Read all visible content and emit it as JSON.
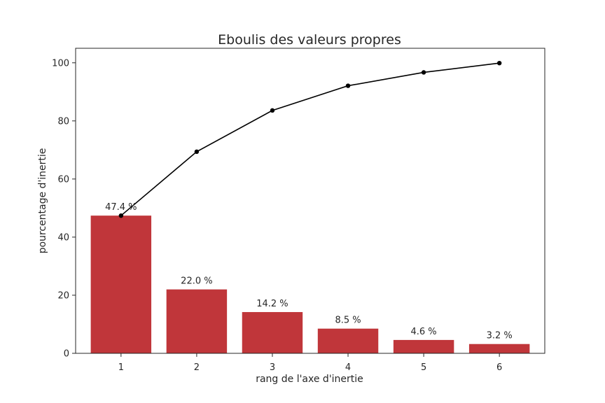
{
  "chart_data": {
    "type": "bar",
    "title": "Eboulis des valeurs propres",
    "xlabel": "rang de l'axe d'inertie",
    "ylabel": "pourcentage d'inertie",
    "categories": [
      "1",
      "2",
      "3",
      "4",
      "5",
      "6"
    ],
    "values": [
      47.4,
      22.0,
      14.2,
      8.5,
      4.6,
      3.2
    ],
    "data_labels": [
      "47.4 %",
      "22.0 %",
      "14.2 %",
      "8.5 %",
      "4.6 %",
      "3.2 %"
    ],
    "cumulative": [
      47.4,
      69.4,
      83.6,
      92.1,
      96.7,
      99.9
    ],
    "ylim": [
      0,
      105
    ],
    "yticks": [
      0,
      20,
      40,
      60,
      80,
      100
    ],
    "grid": false,
    "colors": {
      "bar": "#c0363a",
      "line": "#000000",
      "axis": "#262626"
    }
  }
}
